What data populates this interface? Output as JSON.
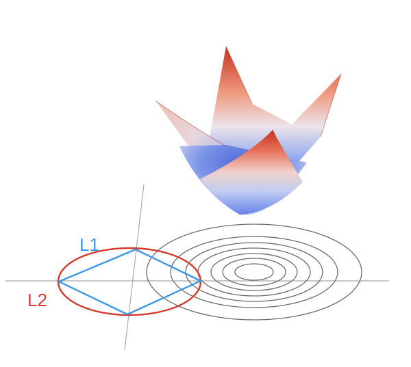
{
  "labels": {
    "l1": "L1",
    "l2": "L2"
  },
  "colors": {
    "l1": "#3b97e3",
    "l2": "#d43b2c",
    "axis": "#a8a8a8",
    "contour": "#6a6a6a",
    "surface_high": "#c4331f",
    "surface_mid": "#e9e5ea",
    "surface_low": "#4f6fe4"
  }
}
